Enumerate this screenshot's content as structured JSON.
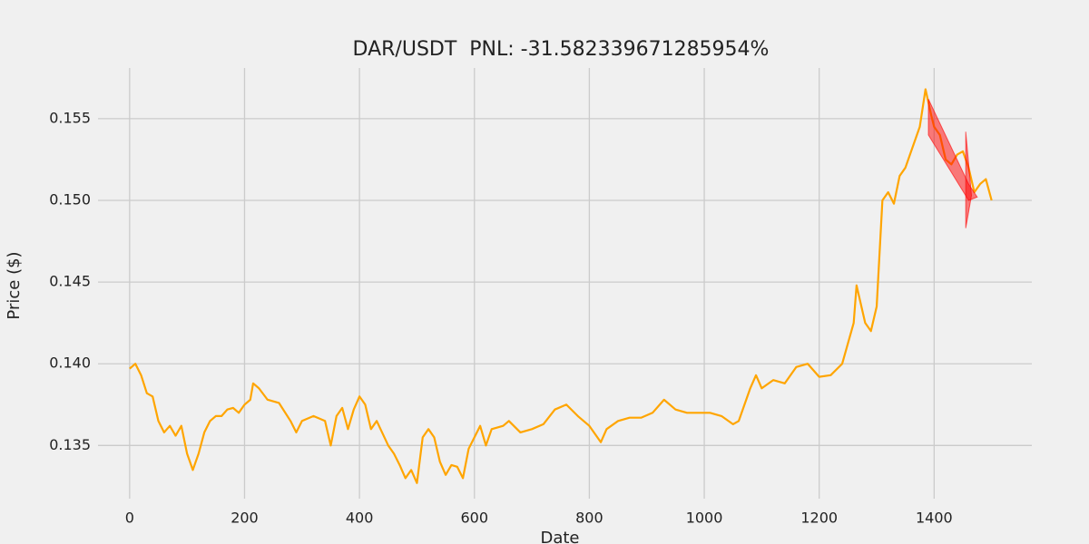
{
  "chart_data": {
    "type": "line",
    "title": "DAR/USDT  PNL: -31.582339671285954%",
    "xlabel": "Date",
    "ylabel": "Price ($)",
    "xlim": [
      -55,
      1570
    ],
    "ylim": [
      0.1323,
      0.1581
    ],
    "xticks": [
      0,
      200,
      400,
      600,
      800,
      1000,
      1200,
      1400
    ],
    "yticks": [
      0.135,
      {
        "value": 0.14,
        "label": "0.140"
      },
      0.145,
      {
        "value": 0.15,
        "label": "0.150"
      },
      0.155
    ],
    "grid": true,
    "series": [
      {
        "color": "#ffa500",
        "x": [
          0,
          10,
          20,
          30,
          40,
          50,
          60,
          70,
          80,
          90,
          100,
          110,
          120,
          130,
          140,
          150,
          160,
          170,
          180,
          190,
          200,
          210,
          215,
          225,
          240,
          260,
          280,
          290,
          300,
          320,
          340,
          350,
          360,
          370,
          380,
          390,
          400,
          410,
          420,
          430,
          450,
          460,
          470,
          480,
          490,
          500,
          510,
          520,
          530,
          540,
          550,
          560,
          570,
          580,
          590,
          600,
          610,
          620,
          630,
          650,
          660,
          680,
          700,
          720,
          740,
          760,
          780,
          800,
          820,
          830,
          850,
          870,
          890,
          910,
          930,
          950,
          970,
          990,
          1010,
          1030,
          1050,
          1060,
          1080,
          1090,
          1100,
          1120,
          1140,
          1160,
          1180,
          1200,
          1220,
          1240,
          1260,
          1265,
          1280,
          1290,
          1300,
          1310,
          1320,
          1330,
          1340,
          1350,
          1360,
          1375,
          1385,
          1395,
          1400,
          1410,
          1420,
          1430,
          1440,
          1450,
          1460,
          1470,
          1480,
          1490,
          1500
        ],
        "values": [
          0.1397,
          0.14,
          0.1393,
          0.1382,
          0.138,
          0.1365,
          0.1358,
          0.1362,
          0.1356,
          0.1362,
          0.1345,
          0.1335,
          0.1345,
          0.1358,
          0.1365,
          0.1368,
          0.1368,
          0.1372,
          0.1373,
          0.137,
          0.1375,
          0.1378,
          0.1388,
          0.1385,
          0.1378,
          0.1376,
          0.1365,
          0.1358,
          0.1365,
          0.1368,
          0.1365,
          0.135,
          0.1368,
          0.1373,
          0.136,
          0.1372,
          0.138,
          0.1375,
          0.136,
          0.1365,
          0.135,
          0.1345,
          0.1338,
          0.133,
          0.1335,
          0.1327,
          0.1355,
          0.136,
          0.1355,
          0.134,
          0.1332,
          0.1338,
          0.1337,
          0.133,
          0.1348,
          0.1355,
          0.1362,
          0.135,
          0.136,
          0.1362,
          0.1365,
          0.1358,
          0.136,
          0.1363,
          0.1372,
          0.1375,
          0.1368,
          0.1362,
          0.1352,
          0.136,
          0.1365,
          0.1367,
          0.1367,
          0.137,
          0.1378,
          0.1372,
          0.137,
          0.137,
          0.137,
          0.1368,
          0.1363,
          0.1365,
          0.1385,
          0.1393,
          0.1385,
          0.139,
          0.1388,
          0.1398,
          0.14,
          0.1392,
          0.1393,
          0.14,
          0.1425,
          0.1448,
          0.1425,
          0.142,
          0.1435,
          0.15,
          0.1505,
          0.1498,
          0.1515,
          0.152,
          0.153,
          0.1545,
          0.1568,
          0.1552,
          0.1545,
          0.154,
          0.1525,
          0.1522,
          0.1528,
          0.153,
          0.152,
          0.1505,
          0.151,
          0.1513,
          0.15
        ]
      }
    ],
    "shaded_areas": [
      {
        "color": "#ff0000",
        "x": [
          1390,
          1460,
          1475,
          1460,
          1390
        ],
        "y": [
          0.1562,
          0.151,
          0.1502,
          0.15,
          0.154
        ]
      },
      {
        "color": "#ff0000",
        "x": [
          1455,
          1465,
          1455
        ],
        "y": [
          0.1542,
          0.1503,
          0.1483
        ]
      }
    ]
  }
}
